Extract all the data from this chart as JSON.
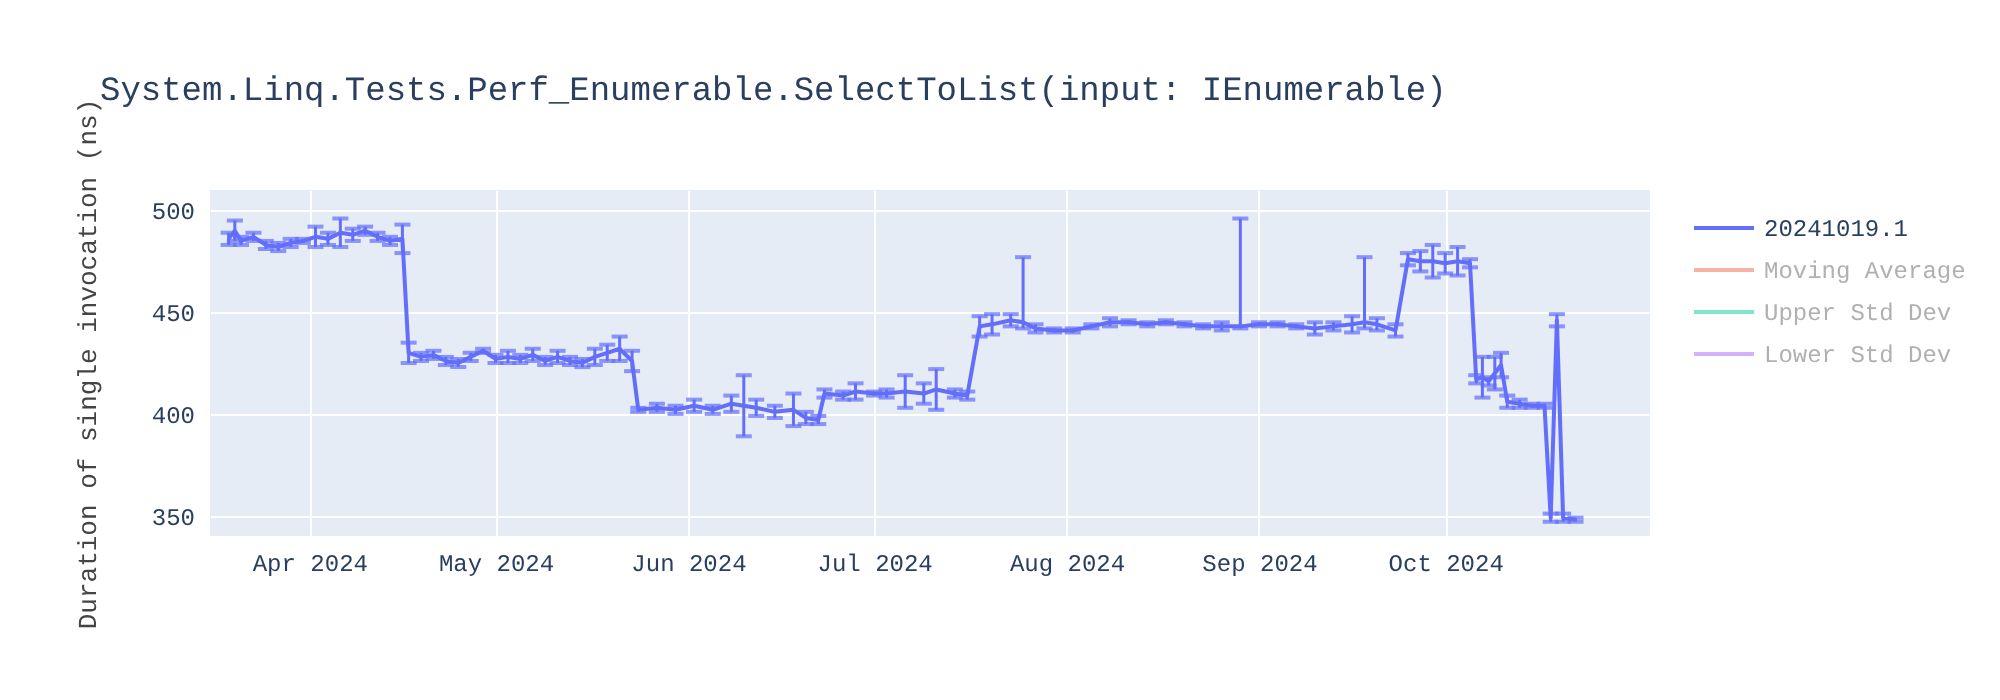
{
  "chart_data": {
    "type": "line",
    "title": "System.Linq.Tests.Perf_Enumerable.SelectToList(input: IEnumerable)",
    "ylabel": "Duration of single invocation (ns)",
    "xlim": [
      "2024-03-16",
      "2024-11-03"
    ],
    "ylim": [
      340,
      510
    ],
    "yticks": [
      350,
      400,
      450,
      500
    ],
    "xticks": [
      {
        "value": "2024-04-01",
        "label": "Apr 2024"
      },
      {
        "value": "2024-05-01",
        "label": "May 2024"
      },
      {
        "value": "2024-06-01",
        "label": "Jun 2024"
      },
      {
        "value": "2024-07-01",
        "label": "Jul 2024"
      },
      {
        "value": "2024-08-01",
        "label": "Aug 2024"
      },
      {
        "value": "2024-09-01",
        "label": "Sep 2024"
      },
      {
        "value": "2024-10-01",
        "label": "Oct 2024"
      }
    ],
    "grid": true,
    "legend": "top right",
    "marker": "none",
    "line_style": "solid",
    "series": [
      {
        "name": "20241019.1",
        "color": "#636efa",
        "x": [
          "2024-03-19",
          "2024-03-20",
          "2024-03-21",
          "2024-03-23",
          "2024-03-25",
          "2024-03-27",
          "2024-03-29",
          "2024-03-31",
          "2024-04-02",
          "2024-04-04",
          "2024-04-06",
          "2024-04-08",
          "2024-04-10",
          "2024-04-12",
          "2024-04-14",
          "2024-04-16",
          "2024-04-17",
          "2024-04-19",
          "2024-04-21",
          "2024-04-23",
          "2024-04-25",
          "2024-04-27",
          "2024-04-29",
          "2024-05-01",
          "2024-05-03",
          "2024-05-05",
          "2024-05-07",
          "2024-05-09",
          "2024-05-11",
          "2024-05-13",
          "2024-05-15",
          "2024-05-17",
          "2024-05-19",
          "2024-05-21",
          "2024-05-23",
          "2024-05-24",
          "2024-05-27",
          "2024-05-30",
          "2024-06-02",
          "2024-06-05",
          "2024-06-08",
          "2024-06-10",
          "2024-06-12",
          "2024-06-15",
          "2024-06-18",
          "2024-06-20",
          "2024-06-22",
          "2024-06-23",
          "2024-06-26",
          "2024-06-28",
          "2024-07-01",
          "2024-07-03",
          "2024-07-06",
          "2024-07-09",
          "2024-07-11",
          "2024-07-14",
          "2024-07-16",
          "2024-07-18",
          "2024-07-20",
          "2024-07-23",
          "2024-07-25",
          "2024-07-27",
          "2024-07-30",
          "2024-08-02",
          "2024-08-05",
          "2024-08-08",
          "2024-08-11",
          "2024-08-14",
          "2024-08-17",
          "2024-08-20",
          "2024-08-23",
          "2024-08-26",
          "2024-08-29",
          "2024-09-01",
          "2024-09-04",
          "2024-09-07",
          "2024-09-10",
          "2024-09-13",
          "2024-09-16",
          "2024-09-18",
          "2024-09-20",
          "2024-09-23",
          "2024-09-25",
          "2024-09-27",
          "2024-09-29",
          "2024-10-01",
          "2024-10-03",
          "2024-10-05",
          "2024-10-06",
          "2024-10-07",
          "2024-10-08",
          "2024-10-09",
          "2024-10-10",
          "2024-10-11",
          "2024-10-13",
          "2024-10-15",
          "2024-10-17",
          "2024-10-18",
          "2024-10-19",
          "2024-10-20",
          "2024-10-22"
        ],
        "values": [
          486,
          490,
          485,
          487,
          483,
          482,
          484,
          485,
          487,
          486,
          489,
          488,
          490,
          487,
          485,
          486,
          430,
          428,
          429,
          426,
          425,
          428,
          431,
          427,
          428,
          427,
          429,
          426,
          428,
          426,
          425,
          428,
          430,
          432,
          426,
          402,
          403,
          402,
          404,
          402,
          405,
          404,
          403,
          401,
          402,
          398,
          397,
          410,
          409,
          411,
          410,
          410,
          411,
          410,
          412,
          410,
          409,
          443,
          444,
          446,
          445,
          442,
          441,
          441,
          443,
          445,
          445,
          444,
          445,
          444,
          443,
          443,
          443,
          444,
          444,
          443,
          442,
          443,
          444,
          445,
          444,
          441,
          476,
          475,
          475,
          474,
          475,
          474,
          417,
          418,
          416,
          420,
          424,
          406,
          405,
          404,
          404,
          349,
          446,
          349,
          348
        ],
        "errors": [
          3,
          5,
          2,
          2,
          2,
          2,
          2,
          1,
          5,
          3,
          7,
          3,
          2,
          2,
          2,
          7,
          5,
          2,
          2,
          2,
          2,
          2,
          1,
          2,
          3,
          2,
          3,
          2,
          3,
          2,
          2,
          4,
          4,
          6,
          5,
          1,
          2,
          2,
          3,
          2,
          4,
          15,
          4,
          3,
          8,
          3,
          2,
          2,
          2,
          4,
          1,
          2,
          8,
          5,
          10,
          2,
          2,
          5,
          5,
          3,
          [
            442,
            477
          ],
          2,
          1,
          1,
          1,
          2,
          1,
          1,
          1,
          1,
          1,
          2,
          [
            442,
            496
          ],
          1,
          1,
          1,
          3,
          2,
          4,
          [
            442,
            477
          ],
          3,
          3,
          3,
          5,
          8,
          5,
          7,
          2,
          2,
          10,
          2,
          8,
          6,
          3,
          2,
          1,
          1,
          2,
          3,
          2,
          1
        ]
      },
      {
        "name": "Moving Average",
        "color": "#f7b3a5"
      },
      {
        "name": "Upper Std Dev",
        "color": "#80e6cb"
      },
      {
        "name": "Lower Std Dev",
        "color": "#d5b1fd"
      }
    ]
  }
}
